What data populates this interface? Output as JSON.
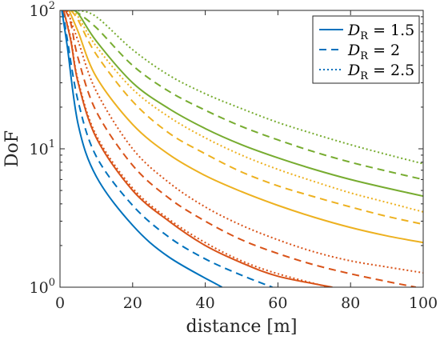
{
  "chart_data": {
    "type": "line",
    "xlabel": "distance [m]",
    "ylabel": "DoF",
    "xlim": [
      0,
      100
    ],
    "ylim": [
      1,
      100
    ],
    "yscale": "log",
    "x_ticks": [
      0,
      20,
      40,
      60,
      80,
      100
    ],
    "x_tick_labels": [
      "0",
      "20",
      "40",
      "60",
      "80",
      "100"
    ],
    "y_ticks": [
      1,
      10,
      100
    ],
    "y_tick_labels": [
      {
        "base": "10",
        "exp": "0"
      },
      {
        "base": "10",
        "exp": "1"
      },
      {
        "base": "10",
        "exp": "2"
      }
    ],
    "grid": false,
    "legend_position": "top-right",
    "legend": [
      {
        "symbol": "D",
        "sub": "R",
        "text": " = 1.5",
        "line_style": "solid"
      },
      {
        "symbol": "D",
        "sub": "R",
        "text": " = 2",
        "line_style": "dashed"
      },
      {
        "symbol": "D",
        "sub": "R",
        "text": " = 2.5",
        "line_style": "dotted"
      }
    ],
    "colors": {
      "blue": "#0072BD",
      "red": "#D95319",
      "yellow": "#EDB120",
      "green": "#77AC30"
    },
    "series": [
      {
        "color": "blue",
        "line_style": "solid",
        "x": [
          0.5,
          2,
          5,
          10,
          20,
          30,
          44.6
        ],
        "y": [
          100,
          55,
          15,
          6.3,
          2.8,
          1.65,
          1.0
        ]
      },
      {
        "color": "blue",
        "line_style": "dashed",
        "x": [
          0.8,
          2,
          5,
          10,
          20,
          30,
          40,
          50,
          58.5
        ],
        "y": [
          100,
          62,
          22,
          8.8,
          3.9,
          2.3,
          1.6,
          1.22,
          1.0
        ]
      },
      {
        "color": "red",
        "line_style": "solid",
        "x": [
          1,
          3,
          5,
          10,
          20,
          30,
          40,
          50,
          60,
          75
        ],
        "y": [
          100,
          60,
          30,
          12,
          5.0,
          3.0,
          2.0,
          1.5,
          1.2,
          1.0
        ]
      },
      {
        "color": "red",
        "line_style": "dotted",
        "x": [
          1,
          3,
          5,
          10,
          20,
          30,
          40,
          50,
          60,
          74
        ],
        "y": [
          100,
          62,
          31,
          12.5,
          5.2,
          3.1,
          2.1,
          1.55,
          1.25,
          1.0
        ]
      },
      {
        "color": "red",
        "line_style": "dashed",
        "x": [
          1.5,
          3,
          5,
          10,
          20,
          30,
          40,
          50,
          60,
          70,
          80,
          90,
          98
        ],
        "y": [
          100,
          80,
          45,
          18.6,
          7.6,
          4.4,
          3.0,
          2.2,
          1.75,
          1.45,
          1.25,
          1.1,
          1.0
        ]
      },
      {
        "color": "red",
        "line_style": "dotted",
        "x": [
          2,
          5,
          10,
          20,
          30,
          40,
          50,
          60,
          70,
          80,
          90,
          100
        ],
        "y": [
          100,
          60,
          26,
          10,
          5.7,
          3.8,
          2.8,
          2.2,
          1.8,
          1.55,
          1.4,
          1.27
        ]
      },
      {
        "color": "yellow",
        "line_style": "solid",
        "x": [
          2.5,
          5,
          10,
          20,
          30,
          40,
          50,
          60,
          70,
          80,
          90,
          100
        ],
        "y": [
          100,
          70,
          33,
          15,
          9.1,
          6.4,
          4.9,
          3.9,
          3.2,
          2.7,
          2.35,
          2.1
        ]
      },
      {
        "color": "yellow",
        "line_style": "dashed",
        "x": [
          3,
          5,
          10,
          20,
          30,
          40,
          50,
          60,
          70,
          80,
          90,
          100
        ],
        "y": [
          100,
          85,
          48,
          22,
          13,
          9.2,
          6.8,
          5.4,
          4.5,
          3.8,
          3.25,
          2.85
        ]
      },
      {
        "color": "yellow",
        "line_style": "dotted",
        "x": [
          3.5,
          5,
          10,
          20,
          30,
          40,
          50,
          60,
          70,
          80,
          90,
          100
        ],
        "y": [
          100,
          90,
          55,
          27,
          17,
          12,
          9.0,
          7.1,
          5.8,
          4.8,
          4.1,
          3.5
        ]
      },
      {
        "color": "green",
        "line_style": "solid",
        "x": [
          3,
          5,
          10,
          20,
          30,
          40,
          50,
          60,
          70,
          80,
          90,
          100
        ],
        "y": [
          100,
          95,
          60,
          30,
          19.5,
          14,
          10.7,
          8.6,
          7.1,
          6.0,
          5.2,
          4.55
        ]
      },
      {
        "color": "green",
        "line_style": "dashed",
        "x": [
          4,
          10,
          20,
          30,
          40,
          50,
          60,
          70,
          80,
          90,
          100
        ],
        "y": [
          100,
          75,
          40,
          26,
          19,
          14.5,
          11.6,
          9.5,
          8.0,
          6.9,
          6.0
        ]
      },
      {
        "color": "green",
        "line_style": "dotted",
        "x": [
          5,
          10,
          20,
          30,
          40,
          50,
          60,
          70,
          80,
          90,
          100
        ],
        "y": [
          100,
          90,
          52,
          34,
          25,
          19.5,
          15.5,
          12.8,
          10.7,
          9.1,
          7.8
        ]
      }
    ]
  }
}
